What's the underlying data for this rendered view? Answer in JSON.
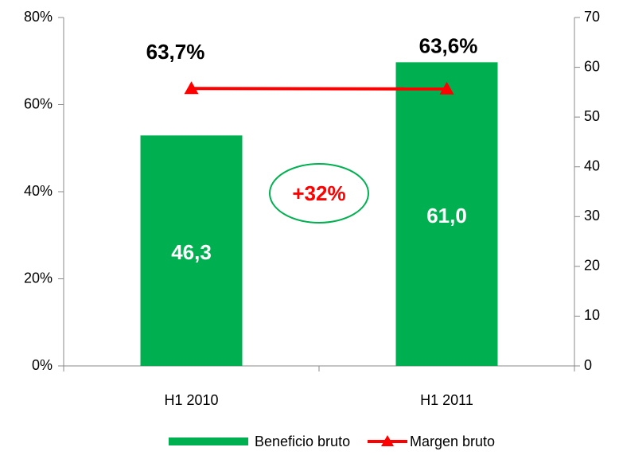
{
  "chart_data": {
    "type": "combo",
    "categories": [
      "H1 2010",
      "H1 2011"
    ],
    "series": [
      {
        "name": "Beneficio bruto",
        "type": "bar",
        "color": "#00b050",
        "axis": "y2",
        "values": [
          46.3,
          61.0
        ],
        "value_labels": [
          "46,3",
          "61,0"
        ]
      },
      {
        "name": "Margen bruto",
        "type": "line",
        "color": "#ff0000",
        "axis": "y",
        "values": [
          63.7,
          63.6
        ],
        "value_labels": [
          "63,7%",
          "63,6%"
        ]
      }
    ],
    "ylim": [
      0,
      80
    ],
    "yticks": [
      {
        "value": 0,
        "label": "0%"
      },
      {
        "value": 20,
        "label": "20%"
      },
      {
        "value": 40,
        "label": "40%"
      },
      {
        "value": 60,
        "label": "60%"
      },
      {
        "value": 80,
        "label": "80%"
      }
    ],
    "y2lim": [
      0,
      70
    ],
    "y2ticks": [
      0,
      10,
      20,
      30,
      40,
      50,
      60,
      70
    ],
    "annotation": "+32%",
    "grid": false,
    "legend": "bottom"
  }
}
